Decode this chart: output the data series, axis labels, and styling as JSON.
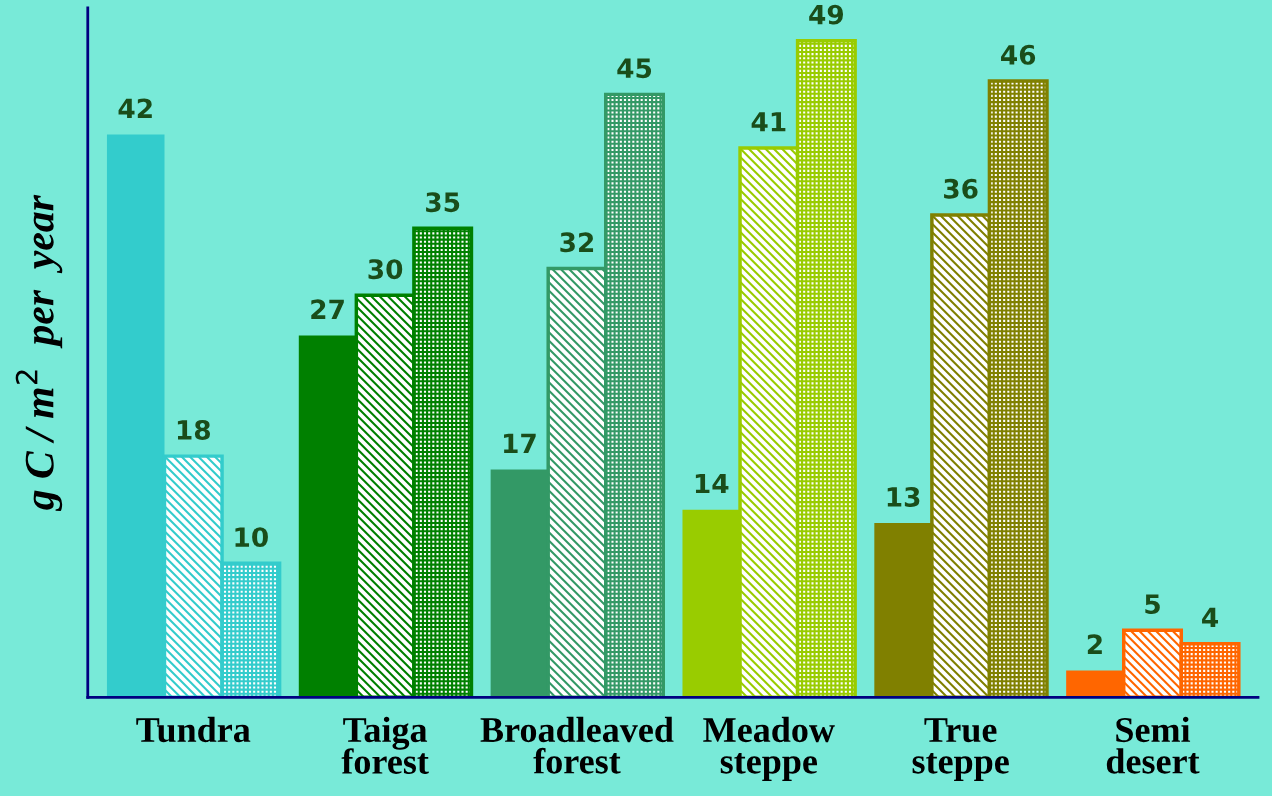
{
  "chart_data": {
    "type": "bar",
    "ylabel": "g C / m$^{2}$  per  year",
    "categories": [
      "Tundra",
      "Taiga\nforest",
      "Broadleaved\nforest",
      "Meadow\nsteppe",
      "True\nsteppe",
      "Semi\ndesert"
    ],
    "series": [
      {
        "colors": [
          "#33cccc",
          "#008000",
          "#339966",
          "#99cc00",
          "#808000",
          "#ff6600"
        ],
        "values": [
          42,
          27,
          17,
          14,
          13,
          2
        ]
      },
      {
        "colors": [
          "#33cccc",
          "#008000",
          "#339966",
          "#99cc00",
          "#808000",
          "#ff6600"
        ],
        "values": [
          18,
          30,
          32,
          41,
          36,
          5
        ]
      },
      {
        "colors": [
          "#33cccc",
          "#008000",
          "#339966",
          "#99cc00",
          "#808000",
          "#ff6600"
        ],
        "values": [
          10,
          35,
          45,
          49,
          46,
          4
        ]
      }
    ],
    "data_labels": true,
    "grid": false,
    "legend": false
  }
}
